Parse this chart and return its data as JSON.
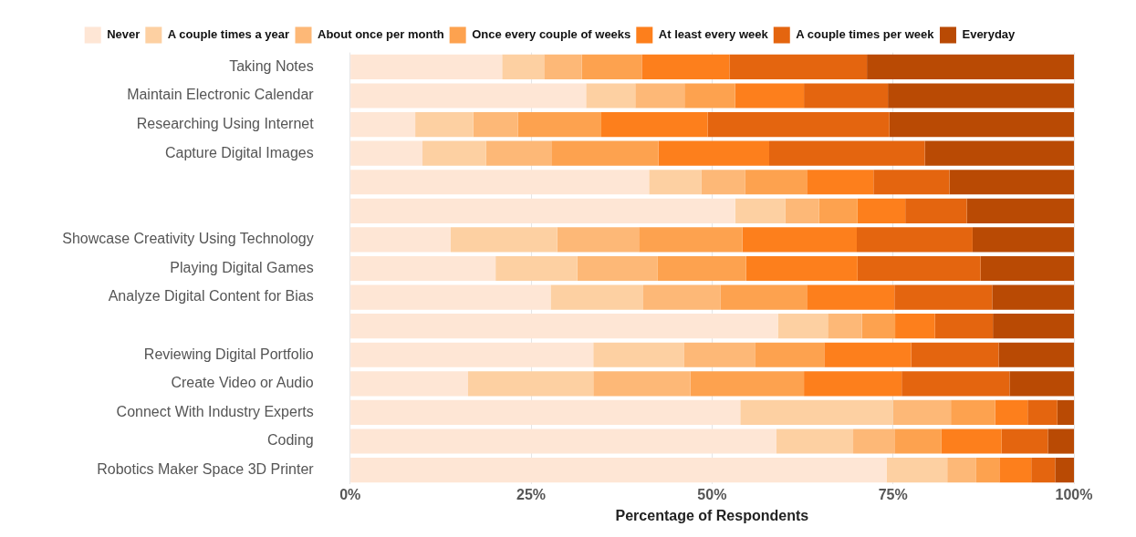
{
  "chart_data": {
    "type": "bar",
    "orientation": "horizontal",
    "stacked": true,
    "xlabel": "Percentage of Respondents",
    "categories": [
      "Taking Notes",
      "Maintain Electronic Calendar",
      "Researching Using Internet",
      "Capture Digital Images",
      null,
      null,
      "Showcase Creativity Using Technology",
      "Playing Digital Games",
      "Analyze Digital Content for Bias",
      null,
      "Reviewing Digital Portfolio",
      "Create Video or Audio",
      "Connect With Industry Experts",
      "Coding",
      "Robotics Maker Space 3D Printer"
    ],
    "series": [
      {
        "name": "Never",
        "color": "#fee6d5",
        "values": [
          21.0,
          32.6,
          9.0,
          10.0,
          41.3,
          53.2,
          13.9,
          20.1,
          27.7,
          59.1,
          33.6,
          16.3,
          53.9,
          58.9,
          74.1
        ]
      },
      {
        "name": "A couple times a year",
        "color": "#fdd0a2",
        "values": [
          5.8,
          6.8,
          8.0,
          8.8,
          7.2,
          6.9,
          14.7,
          11.3,
          12.8,
          6.9,
          12.5,
          17.3,
          21.1,
          10.6,
          8.4
        ]
      },
      {
        "name": "About once per month",
        "color": "#fdb877",
        "values": [
          5.2,
          6.8,
          6.2,
          9.0,
          6.1,
          4.7,
          11.3,
          11.1,
          10.7,
          4.7,
          9.9,
          13.4,
          8.0,
          5.7,
          4.0
        ]
      },
      {
        "name": "Once every couple of weeks",
        "color": "#fda24f",
        "values": [
          8.3,
          7.0,
          11.5,
          14.8,
          8.5,
          5.3,
          14.3,
          12.2,
          11.9,
          4.6,
          9.5,
          15.7,
          6.1,
          6.5,
          3.2
        ]
      },
      {
        "name": "At least every week",
        "color": "#fd7f1c",
        "values": [
          12.1,
          9.5,
          14.7,
          15.3,
          9.2,
          6.6,
          15.8,
          15.4,
          12.1,
          5.5,
          12.0,
          13.5,
          4.5,
          8.3,
          4.4
        ]
      },
      {
        "name": "A couple times per week",
        "color": "#e4650f",
        "values": [
          19.0,
          11.6,
          25.1,
          21.5,
          10.5,
          8.5,
          16.0,
          17.0,
          13.5,
          8.0,
          12.1,
          14.9,
          4.1,
          6.4,
          3.3
        ]
      },
      {
        "name": "Everyday",
        "color": "#b94a04",
        "values": [
          28.6,
          25.7,
          25.5,
          20.6,
          17.2,
          14.8,
          14.0,
          12.9,
          11.3,
          11.2,
          10.4,
          8.9,
          2.3,
          3.6,
          2.6
        ]
      }
    ],
    "xlim": [
      0,
      100
    ],
    "xticks": [
      {
        "value": 0,
        "label": "0%"
      },
      {
        "value": 25,
        "label": "25%"
      },
      {
        "value": 50,
        "label": "50%"
      },
      {
        "value": 75,
        "label": "75%"
      },
      {
        "value": 100,
        "label": "100%"
      }
    ],
    "grid": "x",
    "legend": "top"
  }
}
